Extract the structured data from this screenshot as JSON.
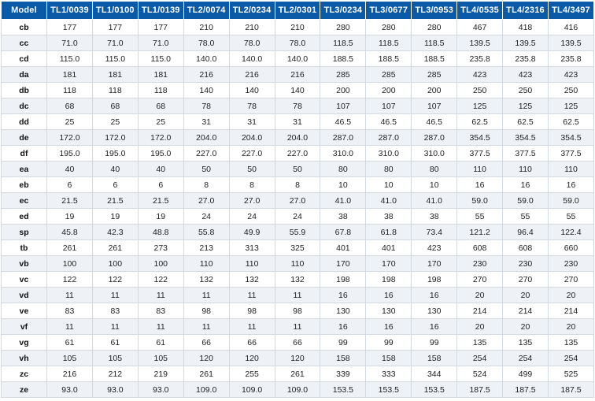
{
  "table": {
    "headers": [
      "Model",
      "TL1/0039",
      "TL1/0100",
      "TL1/0139",
      "TL2/0074",
      "TL2/0234",
      "TL2/0301",
      "TL3/0234",
      "TL3/0677",
      "TL3/0953",
      "TL4/0535",
      "TL4/2316",
      "TL4/3497"
    ],
    "rows": [
      {
        "label": "cb",
        "values": [
          "177",
          "177",
          "177",
          "210",
          "210",
          "210",
          "280",
          "280",
          "280",
          "467",
          "418",
          "416"
        ]
      },
      {
        "label": "cc",
        "values": [
          "71.0",
          "71.0",
          "71.0",
          "78.0",
          "78.0",
          "78.0",
          "118.5",
          "118.5",
          "118.5",
          "139.5",
          "139.5",
          "139.5"
        ]
      },
      {
        "label": "cd",
        "values": [
          "115.0",
          "115.0",
          "115.0",
          "140.0",
          "140.0",
          "140.0",
          "188.5",
          "188.5",
          "188.5",
          "235.8",
          "235.8",
          "235.8"
        ]
      },
      {
        "label": "da",
        "values": [
          "181",
          "181",
          "181",
          "216",
          "216",
          "216",
          "285",
          "285",
          "285",
          "423",
          "423",
          "423"
        ]
      },
      {
        "label": "db",
        "values": [
          "118",
          "118",
          "118",
          "140",
          "140",
          "140",
          "200",
          "200",
          "200",
          "250",
          "250",
          "250"
        ]
      },
      {
        "label": "dc",
        "values": [
          "68",
          "68",
          "68",
          "78",
          "78",
          "78",
          "107",
          "107",
          "107",
          "125",
          "125",
          "125"
        ]
      },
      {
        "label": "dd",
        "values": [
          "25",
          "25",
          "25",
          "31",
          "31",
          "31",
          "46.5",
          "46.5",
          "46.5",
          "62.5",
          "62.5",
          "62.5"
        ]
      },
      {
        "label": "de",
        "values": [
          "172.0",
          "172.0",
          "172.0",
          "204.0",
          "204.0",
          "204.0",
          "287.0",
          "287.0",
          "287.0",
          "354.5",
          "354.5",
          "354.5"
        ]
      },
      {
        "label": "df",
        "values": [
          "195.0",
          "195.0",
          "195.0",
          "227.0",
          "227.0",
          "227.0",
          "310.0",
          "310.0",
          "310.0",
          "377.5",
          "377.5",
          "377.5"
        ]
      },
      {
        "label": "ea",
        "values": [
          "40",
          "40",
          "40",
          "50",
          "50",
          "50",
          "80",
          "80",
          "80",
          "110",
          "110",
          "110"
        ]
      },
      {
        "label": "eb",
        "values": [
          "6",
          "6",
          "6",
          "8",
          "8",
          "8",
          "10",
          "10",
          "10",
          "16",
          "16",
          "16"
        ]
      },
      {
        "label": "ec",
        "values": [
          "21.5",
          "21.5",
          "21.5",
          "27.0",
          "27.0",
          "27.0",
          "41.0",
          "41.0",
          "41.0",
          "59.0",
          "59.0",
          "59.0"
        ]
      },
      {
        "label": "ed",
        "values": [
          "19",
          "19",
          "19",
          "24",
          "24",
          "24",
          "38",
          "38",
          "38",
          "55",
          "55",
          "55"
        ]
      },
      {
        "label": "sp",
        "values": [
          "45.8",
          "42.3",
          "48.8",
          "55.8",
          "49.9",
          "55.9",
          "67.8",
          "61.8",
          "73.4",
          "121.2",
          "96.4",
          "122.4"
        ]
      },
      {
        "label": "tb",
        "values": [
          "261",
          "261",
          "273",
          "213",
          "313",
          "325",
          "401",
          "401",
          "423",
          "608",
          "608",
          "660"
        ]
      },
      {
        "label": "vb",
        "values": [
          "100",
          "100",
          "100",
          "110",
          "110",
          "110",
          "170",
          "170",
          "170",
          "230",
          "230",
          "230"
        ]
      },
      {
        "label": "vc",
        "values": [
          "122",
          "122",
          "122",
          "132",
          "132",
          "132",
          "198",
          "198",
          "198",
          "270",
          "270",
          "270"
        ]
      },
      {
        "label": "vd",
        "values": [
          "11",
          "11",
          "11",
          "11",
          "11",
          "11",
          "16",
          "16",
          "16",
          "20",
          "20",
          "20"
        ]
      },
      {
        "label": "ve",
        "values": [
          "83",
          "83",
          "83",
          "98",
          "98",
          "98",
          "130",
          "130",
          "130",
          "214",
          "214",
          "214"
        ]
      },
      {
        "label": "vf",
        "values": [
          "11",
          "11",
          "11",
          "11",
          "11",
          "11",
          "16",
          "16",
          "16",
          "20",
          "20",
          "20"
        ]
      },
      {
        "label": "vg",
        "values": [
          "61",
          "61",
          "61",
          "66",
          "66",
          "66",
          "99",
          "99",
          "99",
          "135",
          "135",
          "135"
        ]
      },
      {
        "label": "vh",
        "values": [
          "105",
          "105",
          "105",
          "120",
          "120",
          "120",
          "158",
          "158",
          "158",
          "254",
          "254",
          "254"
        ]
      },
      {
        "label": "zc",
        "values": [
          "216",
          "212",
          "219",
          "261",
          "255",
          "261",
          "339",
          "333",
          "344",
          "524",
          "499",
          "525"
        ]
      },
      {
        "label": "ze",
        "values": [
          "93.0",
          "93.0",
          "93.0",
          "109.0",
          "109.0",
          "109.0",
          "153.5",
          "153.5",
          "153.5",
          "187.5",
          "187.5",
          "187.5"
        ]
      }
    ]
  },
  "colors": {
    "header_bg": "#0a5aa8",
    "header_text": "#ffffff",
    "row_alt_bg": "#eef2f6",
    "grid_line": "#d2d9e1"
  }
}
